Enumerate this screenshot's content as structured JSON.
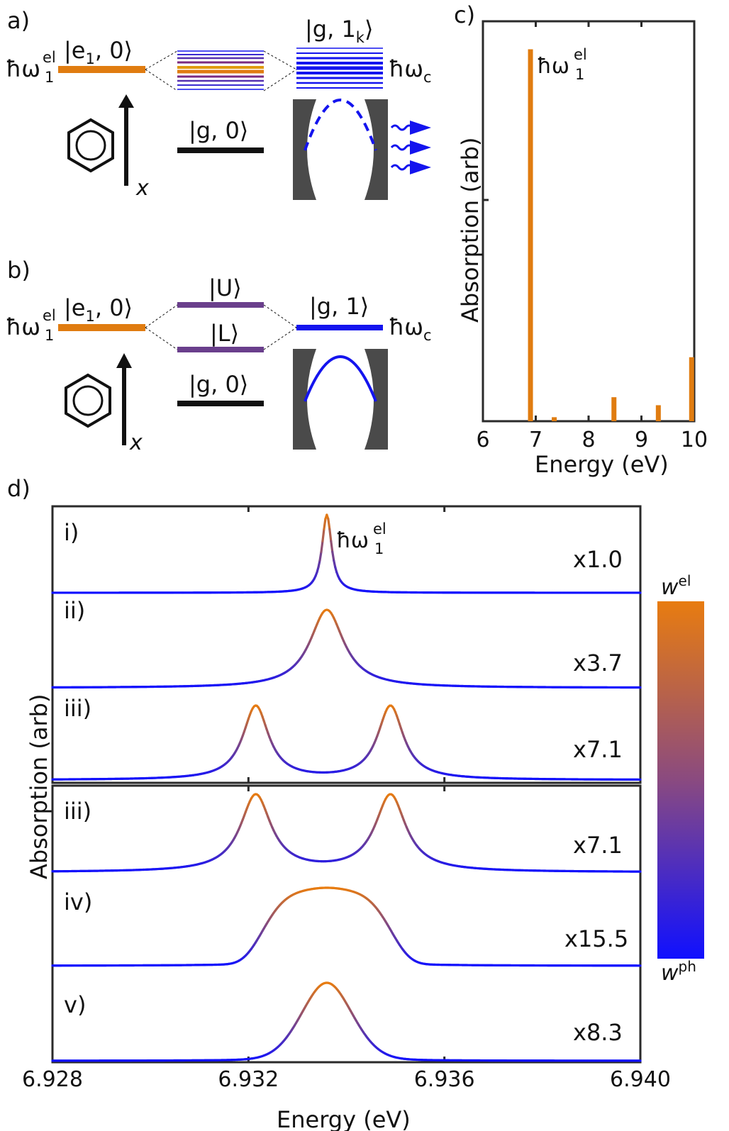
{
  "panels": {
    "a": "a)",
    "b": "b)",
    "c": "c)",
    "d": "d)"
  },
  "colors": {
    "orange": "#e07c10",
    "purple": "#6a3f8c",
    "blue": "#1414ee",
    "black": "#111111",
    "mirror": "#4a4a4a"
  },
  "diagram_a": {
    "hw_el": "ħω",
    "hw_el_sub": "1",
    "hw_el_sup": "el",
    "e1_ket": "|e",
    "e1_sub": "1",
    "e1_tail": ", 0⟩",
    "g0_ket": "|g, 0⟩",
    "g1k_ket": "|g, 1",
    "g1k_sub": "k",
    "g1k_tail": "⟩",
    "hwc": "ħω",
    "hwc_sub": "c",
    "axis_label": "x",
    "photon_icon": "wavy-arrow-icon"
  },
  "diagram_b": {
    "hw_el": "ħω",
    "hw_el_sub": "1",
    "hw_el_sup": "el",
    "e1_ket": "|e",
    "e1_sub": "1",
    "e1_tail": ", 0⟩",
    "upper": "|U⟩",
    "lower": "|L⟩",
    "g0_ket": "|g, 0⟩",
    "g1_ket": "|g, 1⟩",
    "hwc": "ħω",
    "hwc_sub": "c",
    "axis_label": "x"
  },
  "chart_data": [
    {
      "type": "bar",
      "panel": "c",
      "xlabel": "Energy (eV)",
      "ylabel": "Absorption (arb)",
      "xlim": [
        6,
        10
      ],
      "ylim": [
        0,
        1
      ],
      "xticks": [
        6,
        7,
        8,
        9,
        10
      ],
      "annotation": {
        "text": "ħω",
        "sub": "1",
        "sup": "el"
      },
      "x": [
        6.9,
        7.35,
        8.48,
        9.32,
        9.95
      ],
      "values": [
        0.93,
        0.01,
        0.06,
        0.04,
        0.16
      ]
    },
    {
      "type": "line",
      "panel": "d",
      "xlabel": "Energy (eV)",
      "ylabel": "Absorption (arb)",
      "xlim": [
        6.928,
        6.94
      ],
      "xticks": [
        6.928,
        6.932,
        6.936,
        6.94
      ],
      "xtick_labels": [
        "6.928",
        "6.932",
        "6.936",
        "6.940"
      ],
      "annotation": {
        "text": "ħω",
        "sub": "1",
        "sup": "el"
      },
      "colorbar": {
        "top_label": "w",
        "top_sup": "el",
        "bottom_label": "w",
        "bottom_sup": "ph",
        "top_color": "#e87c10",
        "bottom_color": "#1010ff"
      },
      "series": [
        {
          "name": "i)",
          "scale": "x1.0",
          "peaks": [
            6.9336
          ],
          "width": 0.00012,
          "shape": "lorentz",
          "height": 1.0
        },
        {
          "name": "ii)",
          "scale": "x3.7",
          "peaks": [
            6.9336
          ],
          "width": 0.00042,
          "shape": "lorentz",
          "height": 1.0
        },
        {
          "name": "iii)",
          "scale": "x7.1",
          "peaks": [
            6.93215,
            6.9349
          ],
          "width": 0.00032,
          "shape": "lorentz",
          "height": 1.0
        },
        {
          "name": "iii)",
          "scale": "x7.1",
          "peaks": [
            6.93215,
            6.9349
          ],
          "width": 0.00038,
          "shape": "lorentz",
          "height": 1.0
        },
        {
          "name": "iv)",
          "scale": "x15.5",
          "peaks": [
            6.9336
          ],
          "width": 0.0014,
          "shape": "flat",
          "height": 1.0
        },
        {
          "name": "v)",
          "scale": "x8.3",
          "peaks": [
            6.9336
          ],
          "width": 0.00075,
          "shape": "gauss",
          "height": 1.0
        }
      ]
    }
  ]
}
